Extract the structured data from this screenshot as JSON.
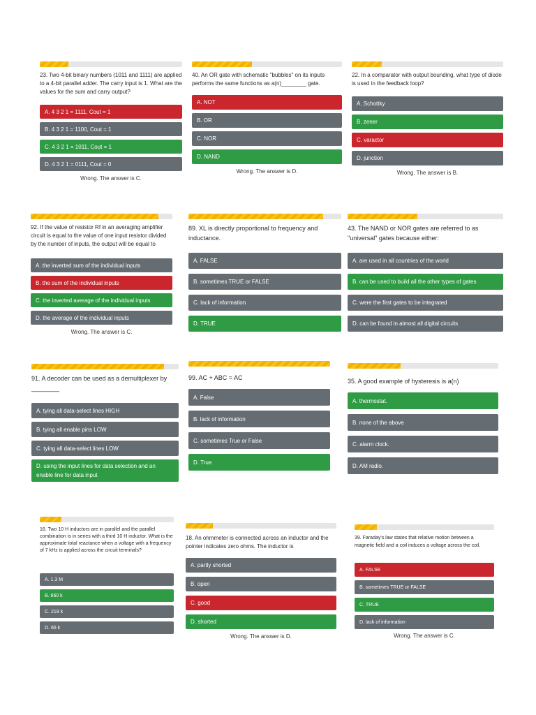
{
  "cards": [
    {
      "question": "23. Two 4-bit binary numbers (1011 and 1111) are applied to a 4-bit parallel adder. The carry input is 1. What are the values for the sum and carry output?",
      "options": [
        {
          "label": "A. 4 3 2 1 = 1111, Cout = 1",
          "state": "red"
        },
        {
          "label": "B. 4 3 2 1 = 1100, Cout = 1",
          "state": "gray"
        },
        {
          "label": "C. 4 3 2 1 = 1011, Cout = 1",
          "state": "green"
        },
        {
          "label": "D. 4 3 2 1 = 0111, Cout = 0",
          "state": "gray"
        }
      ],
      "verdict": "Wrong. The answer is C.",
      "progress": 0.2
    },
    {
      "question": "40. An OR gate with schematic \"bubbles\" on its inputs performs the same functions as a(n)________ gate.",
      "options": [
        {
          "label": "A. NOT",
          "state": "red"
        },
        {
          "label": "B. OR",
          "state": "gray"
        },
        {
          "label": "C. NOR",
          "state": "gray"
        },
        {
          "label": "D. NAND",
          "state": "green"
        }
      ],
      "verdict": "Wrong. The answer is D.",
      "progress": 0.4
    },
    {
      "question": "22. In a comparator with output bounding, what type of diode is used in the feedback loop?",
      "options": [
        {
          "label": "A. Schottky",
          "state": "gray"
        },
        {
          "label": "B. zener",
          "state": "green"
        },
        {
          "label": "C. varactor",
          "state": "red"
        },
        {
          "label": "D. junction",
          "state": "gray"
        }
      ],
      "verdict": "Wrong. The answer is B.",
      "progress": 0.2
    },
    {
      "question": "92. If the value of resistor Rf in an averaging amplifier circuit is equal to the value of one input resistor divided by the number of inputs, the output will be equal to",
      "options": [
        {
          "label": "A. the inverted sum of the individual inputs",
          "state": "gray"
        },
        {
          "label": "B. the sum of the individual inputs",
          "state": "red"
        },
        {
          "label": "C. the inverted average of the individual inputs",
          "state": "green"
        },
        {
          "label": "D. the average of the individual inputs",
          "state": "gray"
        }
      ],
      "verdict": "Wrong. The answer is C.",
      "progress": 0.9
    },
    {
      "question": "89. XL is directly proportional to frequency and inductance.",
      "options": [
        {
          "label": "A. FALSE",
          "state": "gray"
        },
        {
          "label": "B. sometimes TRUE or FALSE",
          "state": "gray"
        },
        {
          "label": "C. lack of information",
          "state": "gray"
        },
        {
          "label": "D. TRUE",
          "state": "green"
        }
      ],
      "verdict": "",
      "progress": 0.88
    },
    {
      "question": "43. The NAND or NOR gates are referred to as \"universal\" gates because either:",
      "options": [
        {
          "label": "A. are used in all countries of the world",
          "state": "gray"
        },
        {
          "label": "B. can be used to build all the other types of gates",
          "state": "green"
        },
        {
          "label": "C. were the first gates to be integrated",
          "state": "gray"
        },
        {
          "label": "D. can be found in almost all digital circuits",
          "state": "gray"
        }
      ],
      "verdict": "",
      "progress": 0.45
    },
    {
      "question": "91. A decoder can be used as a demultiplexer by ________",
      "options": [
        {
          "label": "A. tying all data-select lines HIGH",
          "state": "gray"
        },
        {
          "label": "B. tying all enable pins LOW",
          "state": "gray"
        },
        {
          "label": "C. tying all data-select lines LOW",
          "state": "gray"
        },
        {
          "label": "D. using the input lines for data selection and an enable line for data input",
          "state": "green"
        }
      ],
      "verdict": "",
      "progress": 0.9
    },
    {
      "question": "99. AC + ABC = AC",
      "options": [
        {
          "label": "A. False",
          "state": "gray"
        },
        {
          "label": "B. lack of information",
          "state": "gray"
        },
        {
          "label": "C. sometimes True or False",
          "state": "gray"
        },
        {
          "label": "D. True",
          "state": "green"
        }
      ],
      "verdict": "",
      "progress": 1.0
    },
    {
      "question": "35. A good example of hysteresis is a(n)",
      "options": [
        {
          "label": "A. thermostat.",
          "state": "green"
        },
        {
          "label": "B. none of the above",
          "state": "gray"
        },
        {
          "label": "C. alarm clock.",
          "state": "gray"
        },
        {
          "label": "D. AM radio.",
          "state": "gray"
        }
      ],
      "verdict": "",
      "progress": 0.35
    },
    {
      "question": "16. Two 10 H inductors are in parallel and the parallel combination is in series with a third 10 H inductor. What is the approximate total reactance when a voltage with a frequency of 7 kHz is applied across the circuit terminals?",
      "options": [
        {
          "label": "A. 1.3 M",
          "state": "gray"
        },
        {
          "label": "B. 660 k",
          "state": "green"
        },
        {
          "label": "C. 219 k",
          "state": "gray"
        },
        {
          "label": "D. 66 k",
          "state": "gray"
        }
      ],
      "verdict": "",
      "progress": 0.16
    },
    {
      "question": "18. An ohmmeter is connected across an inductor and the pointer indicates zero ohms. The inductor is",
      "options": [
        {
          "label": "A. partly shorted",
          "state": "gray"
        },
        {
          "label": "B. open",
          "state": "gray"
        },
        {
          "label": "C. good",
          "state": "red"
        },
        {
          "label": "D. shorted",
          "state": "green"
        }
      ],
      "verdict": "Wrong. The answer is D.",
      "progress": 0.18
    },
    {
      "question": "39. Faraday's law states that relative motion between a magnetic field and a coil induces a voltage across the coil.",
      "options": [
        {
          "label": "A. FALSE",
          "state": "red"
        },
        {
          "label": "B. sometimes TRUE or FALSE",
          "state": "gray"
        },
        {
          "label": "C. TRUE",
          "state": "green"
        },
        {
          "label": "D. lack of information",
          "state": "gray"
        }
      ],
      "verdict": "Wrong. The answer is C.",
      "progress": 0.16
    }
  ]
}
